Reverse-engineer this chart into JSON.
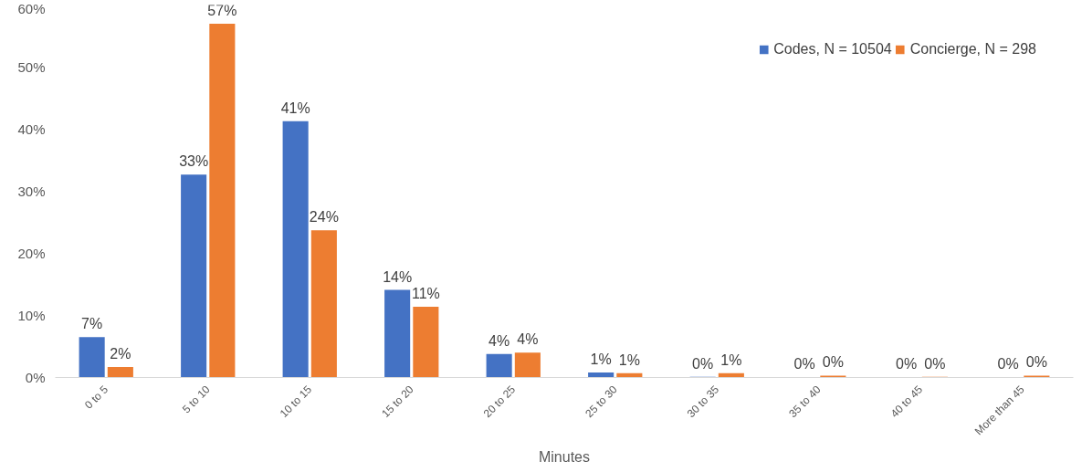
{
  "chart_data": {
    "type": "bar",
    "xlabel": "Minutes",
    "categories": [
      "0 to 5",
      "5 to 10",
      "10 to 15",
      "15 to 20",
      "20 to 25",
      "25 to 30",
      "30 to 35",
      "35 to 40",
      "40 to 45",
      "More than 45"
    ],
    "series": [
      {
        "name": "Codes, N = 10504",
        "color": "#4472c4",
        "values": [
          6.5,
          32.7,
          41.3,
          14.1,
          3.8,
          0.8,
          0.1,
          0.05,
          0.02,
          0.03
        ],
        "value_labels": [
          "7%",
          "33%",
          "41%",
          "14%",
          "4%",
          "1%",
          "0%",
          "0%",
          "0%",
          "0%"
        ]
      },
      {
        "name": "Concierge, N = 298",
        "color": "#ed7d31",
        "values": [
          1.7,
          57,
          23.7,
          11.4,
          4.0,
          0.7,
          0.7,
          0.3,
          0.1,
          0.3
        ],
        "value_labels": [
          "2%",
          "57%",
          "24%",
          "11%",
          "4%",
          "1%",
          "1%",
          "0%",
          "0%",
          "0%"
        ]
      }
    ],
    "ylim": [
      0,
      60
    ],
    "yticks": [
      {
        "value": 0,
        "label": "0%"
      },
      {
        "value": 10,
        "label": "10%"
      },
      {
        "value": 20,
        "label": "20%"
      },
      {
        "value": 30,
        "label": "30%"
      },
      {
        "value": 40,
        "label": "40%"
      },
      {
        "value": 50,
        "label": "50%"
      },
      {
        "value": 60,
        "label": "60%"
      }
    ],
    "grid": false,
    "legend": "top right"
  }
}
